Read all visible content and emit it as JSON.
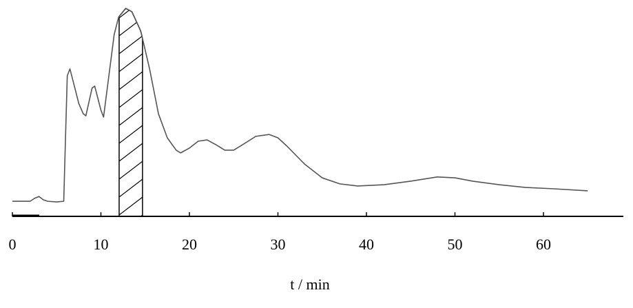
{
  "chart_data": {
    "type": "line",
    "xlabel": "t / min",
    "x": [
      0,
      2,
      2.5,
      3,
      3.5,
      4,
      5,
      5.8,
      6,
      6.2,
      6.5,
      7,
      7.5,
      8,
      8.3,
      9,
      9.3,
      10,
      10.3,
      11,
      11.5,
      12,
      12.8,
      13.5,
      14.5,
      15.5,
      16.5,
      17.5,
      18.5,
      19,
      20,
      21,
      22,
      23,
      24,
      25,
      26,
      27.5,
      29,
      30,
      31,
      33,
      35,
      37,
      39,
      42,
      45,
      48,
      50,
      52,
      55,
      58,
      61,
      65
    ],
    "values": [
      7.2,
      7.2,
      8.6,
      9.5,
      7.9,
      7.2,
      6.9,
      7.2,
      37.5,
      67.1,
      70.4,
      62.2,
      53.9,
      49.0,
      48.0,
      61.2,
      62.2,
      50.7,
      47.4,
      70.4,
      86.8,
      95.1,
      99.3,
      97.7,
      88.5,
      70.4,
      49.0,
      37.5,
      31.6,
      30.3,
      32.6,
      35.9,
      36.5,
      34.2,
      31.6,
      31.6,
      34.2,
      38.2,
      39.1,
      37.5,
      33.6,
      25.0,
      18.4,
      15.5,
      14.5,
      15.1,
      16.8,
      18.8,
      18.4,
      16.8,
      15.1,
      13.8,
      13.2,
      12.2
    ],
    "color": "#555555",
    "highlight": [
      12.06,
      14.7
    ],
    "xlim": [
      0,
      69
    ],
    "xticks": [
      0,
      10,
      20,
      30,
      40,
      50,
      60
    ],
    "ylim": [
      0,
      100
    ]
  }
}
